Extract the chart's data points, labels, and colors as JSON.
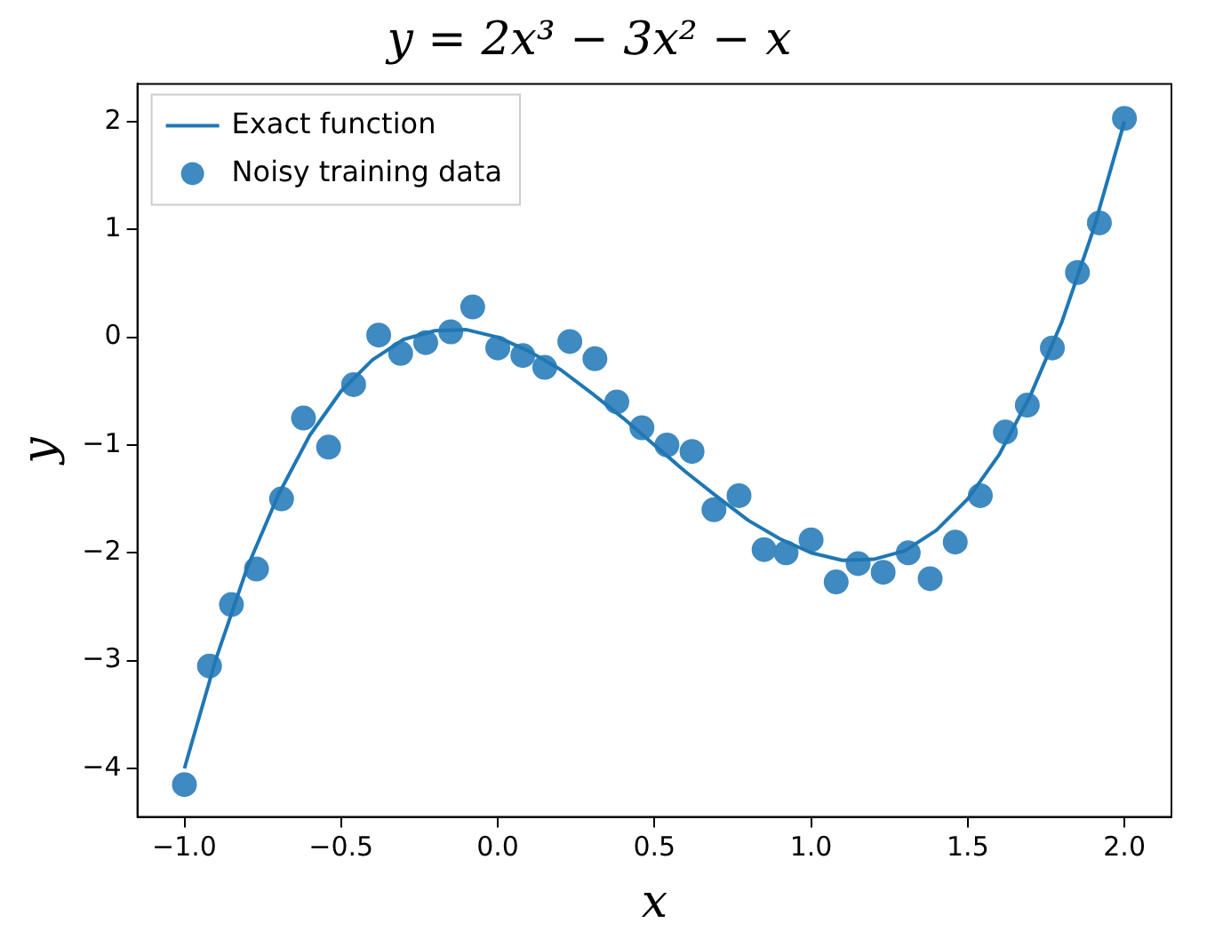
{
  "chart_data": {
    "type": "line",
    "title": "y = 2x³ − 3x² − x",
    "xlabel": "x",
    "ylabel": "y",
    "xlim": [
      -1.15,
      2.15
    ],
    "ylim": [
      -4.45,
      2.35
    ],
    "xticks": [
      {
        "value": -1,
        "label": "−1.0"
      },
      {
        "value": -0.5,
        "label": "−0.5"
      },
      {
        "value": 0,
        "label": "0.0"
      },
      {
        "value": 0.5,
        "label": "0.5"
      },
      {
        "value": 1,
        "label": "1.0"
      },
      {
        "value": 1.5,
        "label": "1.5"
      },
      {
        "value": 2,
        "label": "2.0"
      }
    ],
    "yticks": [
      {
        "value": -4,
        "label": "−4"
      },
      {
        "value": -3,
        "label": "−3"
      },
      {
        "value": -2,
        "label": "−2"
      },
      {
        "value": -1,
        "label": "−1"
      },
      0,
      1,
      2
    ],
    "grid": false,
    "legend": "top left",
    "series": [
      {
        "name": "Exact function",
        "color": "#1f77b4",
        "marker": "none",
        "line_style": "solid",
        "x": [
          -1,
          -0.9,
          -0.8,
          -0.7,
          -0.6,
          -0.5,
          -0.4,
          -0.3,
          -0.2,
          -0.1,
          0,
          0.1,
          0.2,
          0.3,
          0.4,
          0.5,
          0.6,
          0.7,
          0.8,
          0.9,
          1,
          1.1,
          1.2,
          1.3,
          1.4,
          1.5,
          1.6,
          1.7,
          1.8,
          1.9,
          2
        ],
        "values": [
          -4,
          -2.99,
          -2.14,
          -1.46,
          -0.91,
          -0.5,
          -0.21,
          -0.02,
          0.06,
          0.07,
          0,
          -0.13,
          -0.3,
          -0.52,
          -0.75,
          -1,
          -1.25,
          -1.48,
          -1.7,
          -1.87,
          -2,
          -2.07,
          -2.06,
          -1.98,
          -1.79,
          -1.5,
          -1.09,
          -0.54,
          0.14,
          0.99,
          2
        ]
      },
      {
        "name": "Noisy training data",
        "type": "scatter",
        "color": "#3f8ac0",
        "marker": "circle",
        "x": [
          -1,
          -0.92,
          -0.85,
          -0.77,
          -0.69,
          -0.62,
          -0.54,
          -0.46,
          -0.38,
          -0.31,
          -0.23,
          -0.15,
          -0.08,
          0,
          0.08,
          0.15,
          0.23,
          0.31,
          0.38,
          0.46,
          0.54,
          0.62,
          0.69,
          0.77,
          0.85,
          0.92,
          1,
          1.08,
          1.15,
          1.23,
          1.31,
          1.38,
          1.46,
          1.54,
          1.62,
          1.69,
          1.77,
          1.85,
          1.92,
          2
        ],
        "values": [
          -4.15,
          -3.05,
          -2.48,
          -2.15,
          -1.5,
          -0.75,
          -1.02,
          -0.44,
          0.02,
          -0.15,
          -0.05,
          0.05,
          0.28,
          -0.1,
          -0.17,
          -0.28,
          -0.04,
          -0.2,
          -0.6,
          -0.84,
          -1,
          -1.06,
          -1.6,
          -1.47,
          -1.97,
          -2,
          -1.88,
          -2.27,
          -2.1,
          -2.18,
          -2,
          -2.24,
          -1.9,
          -1.47,
          -0.88,
          -0.63,
          -0.1,
          0.6,
          1.06,
          2.03
        ]
      }
    ]
  }
}
